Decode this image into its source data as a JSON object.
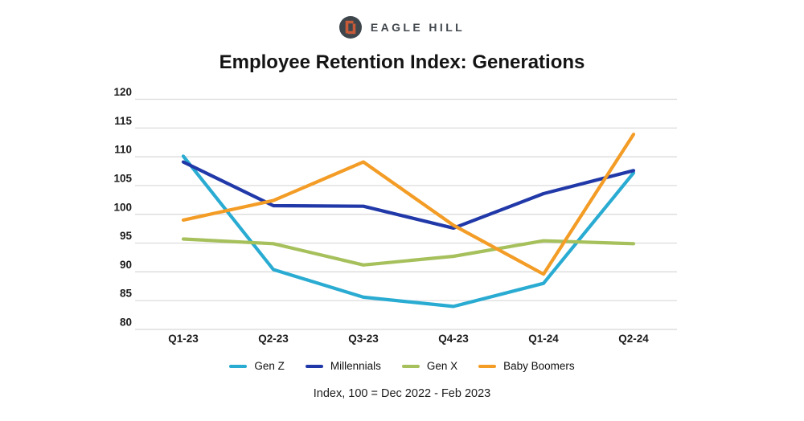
{
  "header": {
    "logo_text": "EAGLE HILL",
    "logo_circle_color": "#3e464c",
    "logo_glyph_color": "#c75b39",
    "logo_text_color": "#41474d"
  },
  "chart_data": {
    "type": "line",
    "title": "Employee Retention Index: Generations",
    "categories": [
      "Q1-23",
      "Q2-23",
      "Q3-23",
      "Q4-23",
      "Q1-24",
      "Q2-24"
    ],
    "series": [
      {
        "name": "Gen Z",
        "color": "#29abd2",
        "values": [
          110.1,
          90.4,
          85.6,
          84.0,
          88.0,
          107.2
        ]
      },
      {
        "name": "Millennials",
        "color": "#2139a8",
        "values": [
          109.1,
          101.5,
          101.4,
          97.6,
          103.6,
          107.6
        ]
      },
      {
        "name": "Gen X",
        "color": "#a6c05c",
        "values": [
          95.7,
          94.9,
          91.2,
          92.7,
          95.4,
          94.9
        ]
      },
      {
        "name": "Baby Boomers",
        "color": "#f39c26",
        "values": [
          99.0,
          102.4,
          109.1,
          98.1,
          89.6,
          113.9
        ]
      }
    ],
    "ylim": [
      80,
      120
    ],
    "yticks": [
      80,
      85,
      90,
      95,
      100,
      105,
      110,
      115,
      120
    ],
    "grid": "horizontal",
    "gridline_color": "#d8d8d8",
    "tick_label_color": "#1a1a1a",
    "legend_position": "bottom",
    "footnote": "Index, 100 = Dec 2022 - Feb 2023"
  }
}
